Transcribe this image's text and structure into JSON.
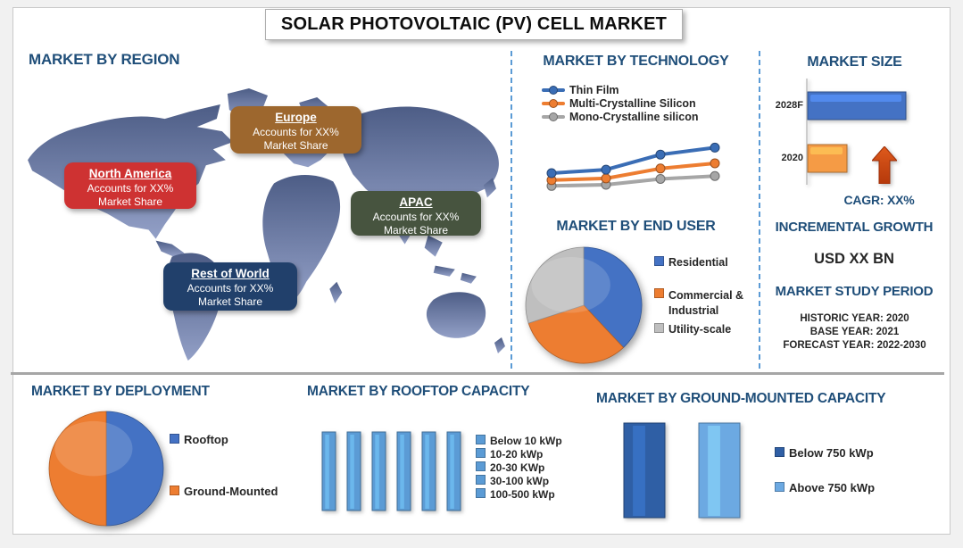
{
  "title": "SOLAR PHOTOVOLTAIC (PV) CELL MARKET",
  "colors": {
    "accent_heading": "#1F4E79",
    "divider_dash": "#5B9BD5",
    "divider_gray": "#A6A6A6"
  },
  "region": {
    "heading": "MARKET BY REGION",
    "callouts": [
      {
        "name": "North America",
        "line1": "Accounts for XX%",
        "line2": "Market Share",
        "color": "#CE3232"
      },
      {
        "name": "Europe",
        "line1": "Accounts for XX%",
        "line2": "Market Share",
        "color": "#9D672E"
      },
      {
        "name": "APAC",
        "line1": "Accounts for XX%",
        "line2": "Market Share",
        "color": "#47543F"
      },
      {
        "name": "Rest of World",
        "line1": "Accounts for XX%",
        "line2": "Market Share",
        "color": "#21406B"
      }
    ]
  },
  "technology": {
    "heading": "MARKET BY TECHNOLOGY"
  },
  "end_user": {
    "heading": "MARKET BY END USER"
  },
  "market_size": {
    "heading": "MARKET SIZE",
    "cagr_label": "CAGR:  XX%",
    "incremental_heading": "INCREMENTAL GROWTH",
    "incremental_value": "USD XX BN",
    "study_heading": "MARKET STUDY PERIOD",
    "study_lines": [
      "HISTORIC YEAR: 2020",
      "BASE YEAR: 2021",
      "FORECAST YEAR: 2022-2030"
    ]
  },
  "deployment": {
    "heading": "MARKET BY DEPLOYMENT"
  },
  "rooftop": {
    "heading": "MARKET BY ROOFTOP CAPACITY"
  },
  "ground": {
    "heading": "MARKET BY GROUND-MOUNTED CAPACITY"
  },
  "chart_data": [
    {
      "id": "technology-trend",
      "type": "line",
      "title": "MARKET BY TECHNOLOGY",
      "x": [
        1,
        2,
        3,
        4
      ],
      "xlabel": "",
      "ylabel": "",
      "ylim": [
        0,
        6
      ],
      "grid": false,
      "legend_position": "top-left",
      "axis_labels_shown": false,
      "series": [
        {
          "name": "Thin Film",
          "color": "#3A6DB5",
          "values": [
            3.0,
            3.3,
            4.6,
            5.2
          ]
        },
        {
          "name": "Multi-Crystalline Silicon",
          "color": "#ED7D31",
          "values": [
            2.4,
            2.55,
            3.4,
            3.85
          ]
        },
        {
          "name": "Mono-Crystalline silicon",
          "color": "#A6A6A6",
          "values": [
            1.9,
            2.0,
            2.5,
            2.75
          ]
        }
      ]
    },
    {
      "id": "end-user-share",
      "type": "pie",
      "title": "MARKET BY END USER",
      "labels": [
        "Residential",
        "Commercial & Industrial",
        "Utility-scale"
      ],
      "values": [
        38,
        32,
        30
      ],
      "colors": [
        "#4472C4",
        "#ED7D31",
        "#BFBFBF"
      ],
      "values_note": "shares shown as XX% placeholders; angles estimated from pie"
    },
    {
      "id": "market-size-bars",
      "type": "hbar",
      "title": "MARKET SIZE",
      "categories": [
        "2028F",
        "2020"
      ],
      "values": [
        100,
        40
      ],
      "colors": [
        "#4472C4",
        "#F59B45"
      ],
      "values_note": "relative bar lengths; actual USD values not shown"
    },
    {
      "id": "deployment-share",
      "type": "pie",
      "title": "MARKET BY DEPLOYMENT",
      "labels": [
        "Rooftop",
        "Ground-Mounted"
      ],
      "values": [
        50,
        50
      ],
      "colors": [
        "#4472C4",
        "#ED7D31"
      ],
      "values_note": "shares not labeled; pie split approximately in half"
    },
    {
      "id": "rooftop-capacity",
      "type": "bar",
      "title": "MARKET BY ROOFTOP CAPACITY",
      "categories": [
        "Below 10 kWp",
        "10-20 kWp",
        "20-30 KWp",
        "30-100 kWp",
        "100-500 kWp"
      ],
      "values": [
        100,
        100,
        100,
        100,
        100,
        100
      ],
      "colors": [
        "#5B9BD5"
      ],
      "values_note": "six equal placeholder bars drawn; five legend entries shown"
    },
    {
      "id": "ground-capacity",
      "type": "bar",
      "title": "MARKET BY GROUND-MOUNTED CAPACITY",
      "categories": [
        "Below 750 kWp",
        "Above 750 kWp"
      ],
      "values": [
        100,
        100
      ],
      "colors": [
        "#2F5FA5",
        "#6CA9E2"
      ],
      "values_note": "equal placeholder bars; values not shown"
    }
  ]
}
